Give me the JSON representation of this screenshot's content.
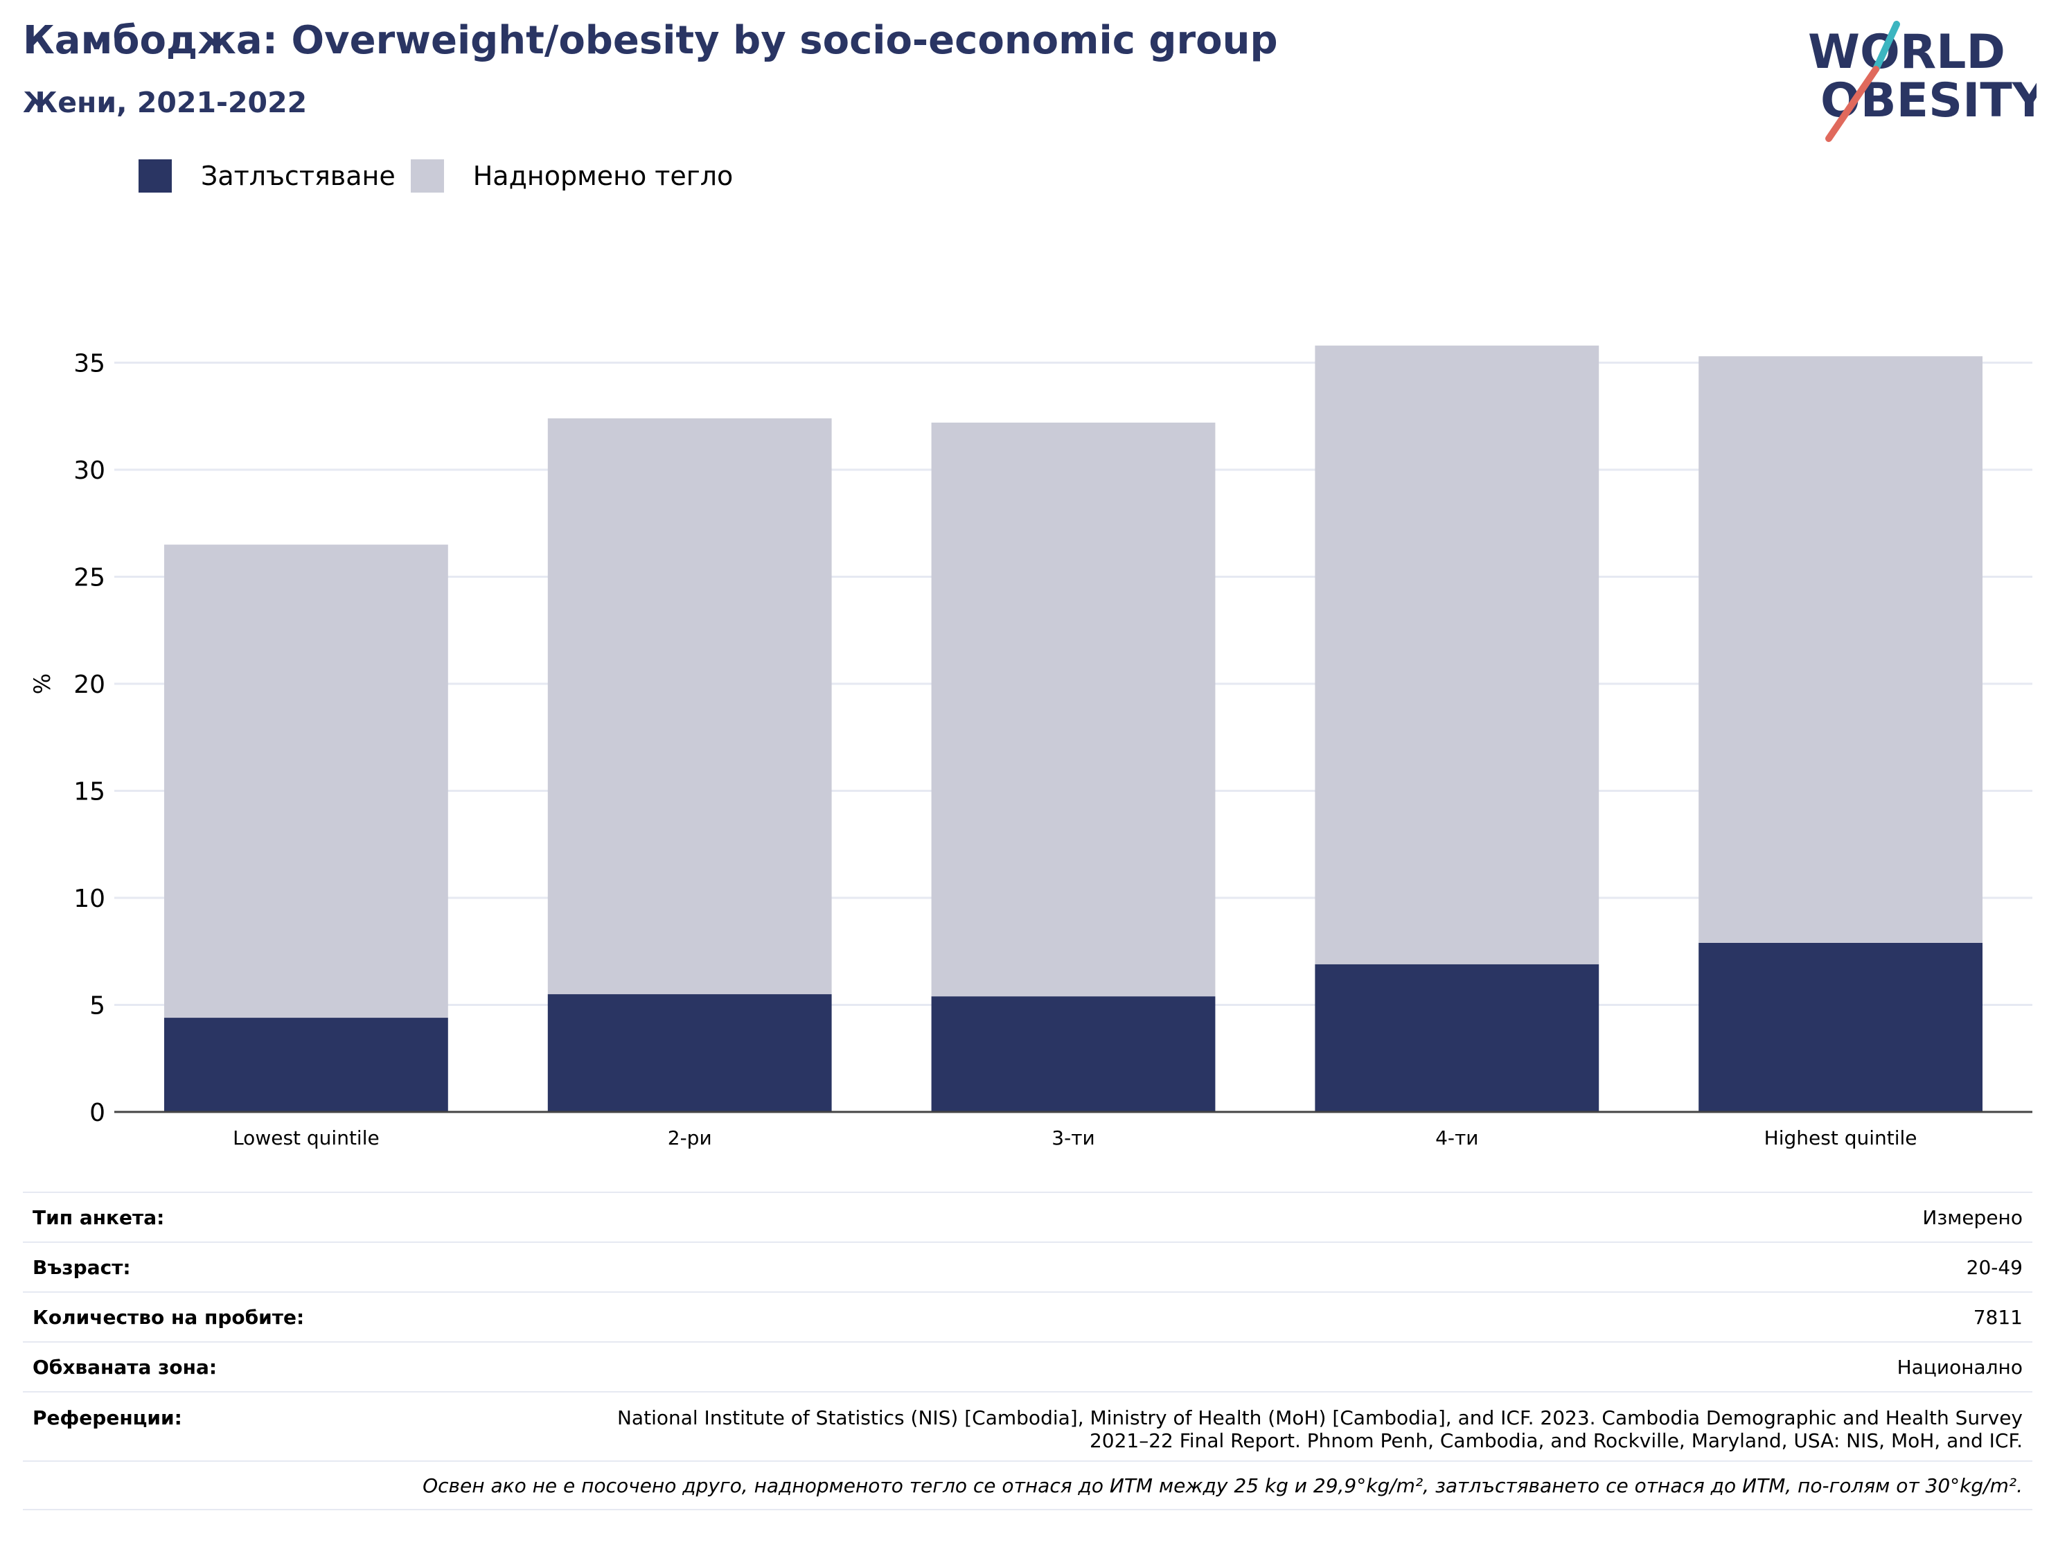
{
  "header": {
    "title": "Камбоджа: Overweight/obesity by socio-economic group",
    "subtitle": "Жени, 2021-2022"
  },
  "logo": {
    "line1": "WORLD",
    "line2": "OBESITY",
    "colors": {
      "text": "#2a3563",
      "slash_top": "#3cb5c0",
      "slash_bottom": "#e0695c"
    }
  },
  "legend": {
    "items": [
      {
        "label": "Затлъстяване",
        "color": "#2a3563"
      },
      {
        "label": "Наднормено тегло",
        "color": "#cacbd7"
      }
    ]
  },
  "chart_data": {
    "type": "bar",
    "stacked": true,
    "categories": [
      "Lowest quintile",
      "2-ри",
      "3-ти",
      "4-ти",
      "Highest quintile"
    ],
    "series": [
      {
        "name": "Затлъстяване",
        "color": "#2a3563",
        "values": [
          4.4,
          5.5,
          5.4,
          6.9,
          7.9
        ]
      },
      {
        "name": "Наднормено тегло",
        "color": "#cacbd7",
        "values": [
          22.1,
          26.9,
          26.8,
          28.9,
          27.4
        ]
      }
    ],
    "ylabel": "%",
    "xlabel": "",
    "ylim": [
      0,
      40
    ],
    "yticks": [
      0,
      5,
      10,
      15,
      20,
      25,
      30,
      35
    ],
    "grid": true,
    "legend_position": "top-left"
  },
  "info": {
    "survey_type": {
      "label": "Тип анкета:",
      "value": "Измерено"
    },
    "age": {
      "label": "Възраст:",
      "value": "20-49"
    },
    "sample_size": {
      "label": "Количество на пробите:",
      "value": "7811"
    },
    "area_covered": {
      "label": "Обхваната зона:",
      "value": "Национално"
    },
    "references": {
      "label": "Референции:",
      "value": "National Institute of Statistics (NIS) [Cambodia], Ministry of Health (MoH) [Cambodia], and ICF. 2023. Cambodia Demographic and Health Survey 2021–22 Final Report. Phnom Penh, Cambodia, and Rockville, Maryland, USA: NIS, MoH, and ICF."
    },
    "note": "Освен ако не е посочено друго, наднорменото тегло се отнася до ИТМ между 25 kg и 29,9°kg/m², затлъстяването се отнася до ИТМ, по-голям от 30°kg/m²."
  }
}
